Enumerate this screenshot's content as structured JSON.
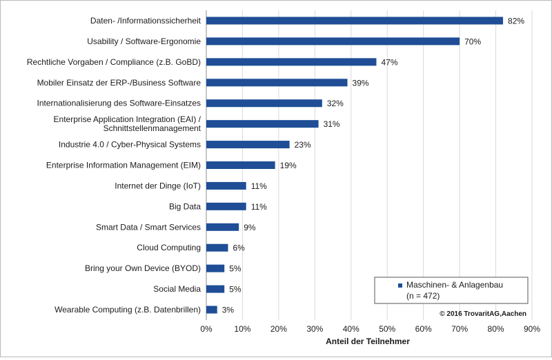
{
  "chart_data": {
    "type": "bar",
    "orientation": "horizontal",
    "categories": [
      "Daten- /Informationssicherheit",
      "Usability / Software-Ergonomie",
      "Rechtliche Vorgaben / Compliance (z.B. GoBD)",
      "Mobiler Einsatz der ERP-/Business Software",
      "Internationalisierung des Software-Einsatzes",
      "Enterprise Application Integration (EAI) / Schnittstellenmanagement",
      "Industrie 4.0 / Cyber-Physical Systems",
      "Enterprise Information Management (EIM)",
      "Internet der Dinge (IoT)",
      "Big Data",
      "Smart Data / Smart Services",
      "Cloud Computing",
      "Bring your Own Device (BYOD)",
      "Social Media",
      "Wearable Computing (z.B. Datenbrillen)"
    ],
    "category_lines": [
      [
        "Daten- /Informationssicherheit"
      ],
      [
        "Usability / Software-Ergonomie"
      ],
      [
        "Rechtliche Vorgaben / Compliance (z.B. GoBD)"
      ],
      [
        "Mobiler Einsatz der ERP-/Business Software"
      ],
      [
        "Internationalisierung des Software-Einsatzes"
      ],
      [
        "Enterprise Application Integration (EAI) /",
        "Schnittstellenmanagement"
      ],
      [
        "Industrie 4.0 / Cyber-Physical Systems"
      ],
      [
        "Enterprise Information Management (EIM)"
      ],
      [
        "Internet der Dinge (IoT)"
      ],
      [
        "Big Data"
      ],
      [
        "Smart Data / Smart Services"
      ],
      [
        "Cloud Computing"
      ],
      [
        "Bring your Own Device (BYOD)"
      ],
      [
        "Social Media"
      ],
      [
        "Wearable Computing (z.B. Datenbrillen)"
      ]
    ],
    "series": [
      {
        "name": "Maschinen- & Anlagenbau",
        "values": [
          82,
          70,
          47,
          39,
          32,
          31,
          23,
          19,
          11,
          11,
          9,
          6,
          5,
          5,
          3
        ]
      }
    ],
    "value_labels": [
      "82%",
      "70%",
      "47%",
      "39%",
      "32%",
      "31%",
      "23%",
      "19%",
      "11%",
      "11%",
      "9%",
      "6%",
      "5%",
      "5%",
      "3%"
    ],
    "xlim": [
      0,
      90
    ],
    "xticks": [
      0,
      10,
      20,
      30,
      40,
      50,
      60,
      70,
      80,
      90
    ],
    "xtick_labels": [
      "0%",
      "10%",
      "20%",
      "30%",
      "40%",
      "50%",
      "60%",
      "70%",
      "80%",
      "90%"
    ],
    "xlabel": "Anteil der Teilnehmer",
    "ylabel": "",
    "grid": true,
    "legend": {
      "position": "bottom-right",
      "series_label": "Maschinen- & Anlagenbau",
      "note": "(n = 472)"
    },
    "copyright": "© 2016 TrovaritAG,Aachen",
    "colors": {
      "bar": "#1f4e96",
      "grid": "#d9d9d9",
      "axis": "#8c8c8c"
    }
  }
}
